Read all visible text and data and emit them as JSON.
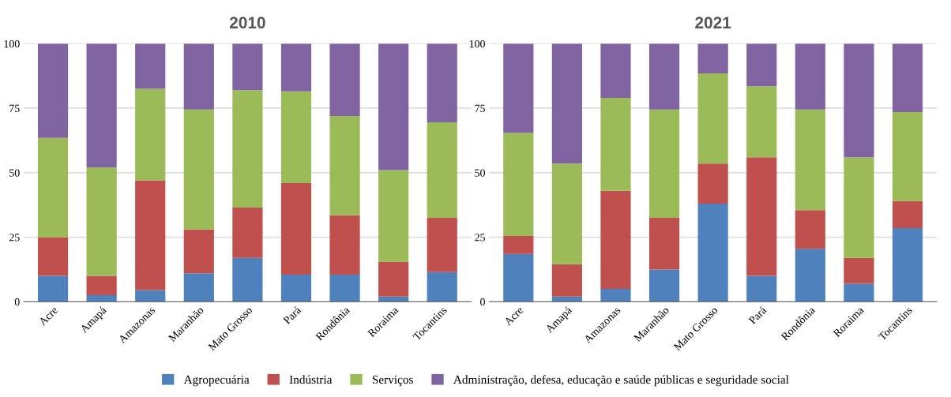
{
  "chart_data": [
    {
      "type": "bar",
      "title": "2010",
      "stacked": true,
      "categories": [
        "Acre",
        "Amapá",
        "Amazonas",
        "Maranhão",
        "Mato Grosso",
        "Pará",
        "Rondônia",
        "Roraima",
        "Tocantins"
      ],
      "series": [
        {
          "name": "Agropecuária",
          "color": "#4f81bd",
          "values": [
            10,
            2.5,
            4.5,
            11,
            17,
            10.5,
            10.5,
            2,
            11.5
          ]
        },
        {
          "name": "Indústria",
          "color": "#c0504d",
          "values": [
            15,
            7.5,
            42.5,
            17,
            19.5,
            35.5,
            23,
            13.5,
            21
          ]
        },
        {
          "name": "Serviços",
          "color": "#9bbb59",
          "values": [
            38.5,
            42,
            35.5,
            46.5,
            45.5,
            35.5,
            38.5,
            35.5,
            37
          ]
        },
        {
          "name": "Administração, defesa, educação e saúde públicas e seguridade social",
          "color": "#8064a2",
          "values": [
            36.5,
            48,
            17.5,
            25.5,
            18,
            18.5,
            28,
            49,
            30.5
          ]
        }
      ],
      "ylim": [
        0,
        100
      ],
      "yticks": [
        0,
        25,
        50,
        75,
        100
      ],
      "grid": "y",
      "legend": "bottom"
    },
    {
      "type": "bar",
      "title": "2021",
      "stacked": true,
      "categories": [
        "Acre",
        "Amapá",
        "Amazonas",
        "Maranhão",
        "Mato Grosso",
        "Pará",
        "Rondônia",
        "Roraima",
        "Tocantins"
      ],
      "series": [
        {
          "color": "#4f81bd",
          "values": [
            18.5,
            2,
            5,
            12.5,
            38,
            10,
            20.5,
            7,
            28.5
          ]
        },
        {
          "color": "#c0504d",
          "values": [
            7,
            12.5,
            38,
            20,
            15.5,
            46,
            15,
            10,
            10.5
          ]
        },
        {
          "color": "#9bbb59",
          "values": [
            40,
            39,
            36,
            42,
            35,
            27.5,
            39,
            39,
            34.5
          ]
        },
        {
          "color": "#8064a2",
          "values": [
            34.5,
            46.5,
            21,
            25.5,
            11.5,
            16.5,
            25.5,
            44,
            26.5
          ]
        }
      ],
      "ylim": [
        0,
        100
      ],
      "yticks": [
        0,
        25,
        50,
        75,
        100
      ],
      "grid": "y"
    }
  ]
}
